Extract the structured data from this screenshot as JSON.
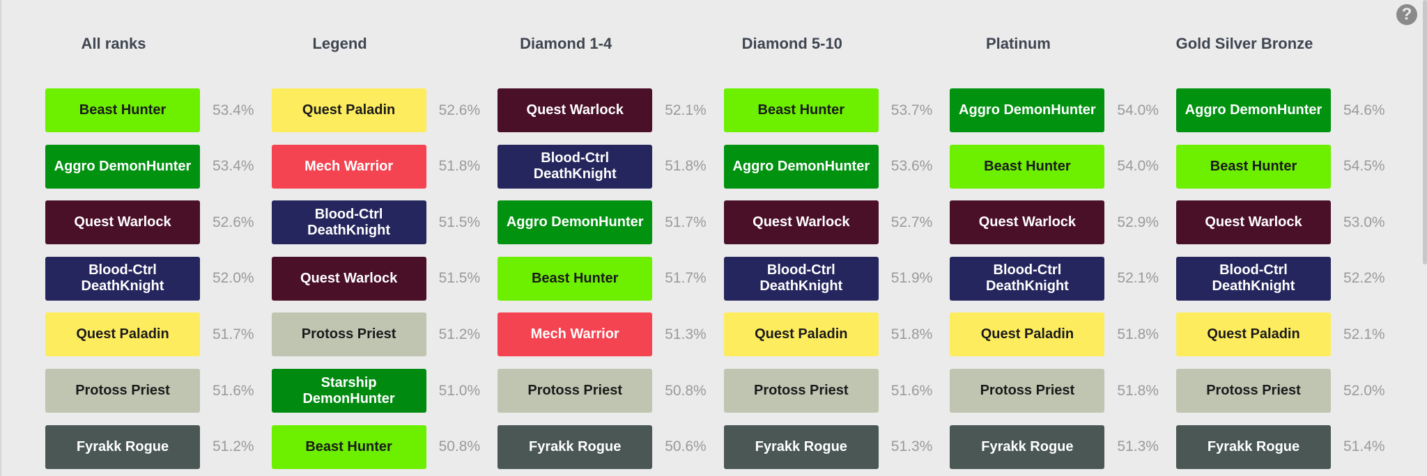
{
  "columns": [
    {
      "title": "All ranks",
      "rows": [
        {
          "deck": "Beast Hunter",
          "color": "#6cf000",
          "winrate": "53.4%"
        },
        {
          "deck": "Aggro DemonHunter",
          "color": "#019210",
          "winrate": "53.4%"
        },
        {
          "deck": "Quest Warlock",
          "color": "#4a1028",
          "winrate": "52.6%"
        },
        {
          "deck": "Blood-Ctrl DeathKnight",
          "color": "#25265e",
          "winrate": "52.0%"
        },
        {
          "deck": "Quest Paladin",
          "color": "#fdec5e",
          "winrate": "51.7%"
        },
        {
          "deck": "Protoss Priest",
          "color": "#bfc5b1",
          "winrate": "51.6%"
        },
        {
          "deck": "Fyrakk Rogue",
          "color": "#4a5755",
          "winrate": "51.2%"
        }
      ]
    },
    {
      "title": "Legend",
      "rows": [
        {
          "deck": "Quest Paladin",
          "color": "#fdec5e",
          "winrate": "52.6%"
        },
        {
          "deck": "Mech Warrior",
          "color": "#f54451",
          "winrate": "51.8%"
        },
        {
          "deck": "Blood-Ctrl DeathKnight",
          "color": "#25265e",
          "winrate": "51.5%"
        },
        {
          "deck": "Quest Warlock",
          "color": "#4a1028",
          "winrate": "51.5%"
        },
        {
          "deck": "Protoss Priest",
          "color": "#bfc5b1",
          "winrate": "51.2%"
        },
        {
          "deck": "Starship DemonHunter",
          "color": "#018a10",
          "winrate": "51.0%"
        },
        {
          "deck": "Beast Hunter",
          "color": "#6cf000",
          "winrate": "50.8%"
        }
      ]
    },
    {
      "title": "Diamond 1-4",
      "rows": [
        {
          "deck": "Quest Warlock",
          "color": "#4a1028",
          "winrate": "52.1%"
        },
        {
          "deck": "Blood-Ctrl DeathKnight",
          "color": "#25265e",
          "winrate": "51.8%"
        },
        {
          "deck": "Aggro DemonHunter",
          "color": "#019210",
          "winrate": "51.7%"
        },
        {
          "deck": "Beast Hunter",
          "color": "#6cf000",
          "winrate": "51.7%"
        },
        {
          "deck": "Mech Warrior",
          "color": "#f54451",
          "winrate": "51.3%"
        },
        {
          "deck": "Protoss Priest",
          "color": "#bfc5b1",
          "winrate": "50.8%"
        },
        {
          "deck": "Fyrakk Rogue",
          "color": "#4a5755",
          "winrate": "50.6%"
        }
      ]
    },
    {
      "title": "Diamond 5-10",
      "rows": [
        {
          "deck": "Beast Hunter",
          "color": "#6cf000",
          "winrate": "53.7%"
        },
        {
          "deck": "Aggro DemonHunter",
          "color": "#019210",
          "winrate": "53.6%"
        },
        {
          "deck": "Quest Warlock",
          "color": "#4a1028",
          "winrate": "52.7%"
        },
        {
          "deck": "Blood-Ctrl DeathKnight",
          "color": "#25265e",
          "winrate": "51.9%"
        },
        {
          "deck": "Quest Paladin",
          "color": "#fdec5e",
          "winrate": "51.8%"
        },
        {
          "deck": "Protoss Priest",
          "color": "#bfc5b1",
          "winrate": "51.6%"
        },
        {
          "deck": "Fyrakk Rogue",
          "color": "#4a5755",
          "winrate": "51.3%"
        }
      ]
    },
    {
      "title": "Platinum",
      "rows": [
        {
          "deck": "Aggro DemonHunter",
          "color": "#019210",
          "winrate": "54.0%"
        },
        {
          "deck": "Beast Hunter",
          "color": "#6cf000",
          "winrate": "54.0%"
        },
        {
          "deck": "Quest Warlock",
          "color": "#4a1028",
          "winrate": "52.9%"
        },
        {
          "deck": "Blood-Ctrl DeathKnight",
          "color": "#25265e",
          "winrate": "52.1%"
        },
        {
          "deck": "Quest Paladin",
          "color": "#fdec5e",
          "winrate": "51.8%"
        },
        {
          "deck": "Protoss Priest",
          "color": "#bfc5b1",
          "winrate": "51.8%"
        },
        {
          "deck": "Fyrakk Rogue",
          "color": "#4a5755",
          "winrate": "51.3%"
        }
      ]
    },
    {
      "title": "Gold Silver Bronze",
      "rows": [
        {
          "deck": "Aggro DemonHunter",
          "color": "#019210",
          "winrate": "54.6%"
        },
        {
          "deck": "Beast Hunter",
          "color": "#6cf000",
          "winrate": "54.5%"
        },
        {
          "deck": "Quest Warlock",
          "color": "#4a1028",
          "winrate": "53.0%"
        },
        {
          "deck": "Blood-Ctrl DeathKnight",
          "color": "#25265e",
          "winrate": "52.2%"
        },
        {
          "deck": "Quest Paladin",
          "color": "#fdec5e",
          "winrate": "52.1%"
        },
        {
          "deck": "Protoss Priest",
          "color": "#bfc5b1",
          "winrate": "52.0%"
        },
        {
          "deck": "Fyrakk Rogue",
          "color": "#4a5755",
          "winrate": "51.4%"
        }
      ]
    }
  ]
}
